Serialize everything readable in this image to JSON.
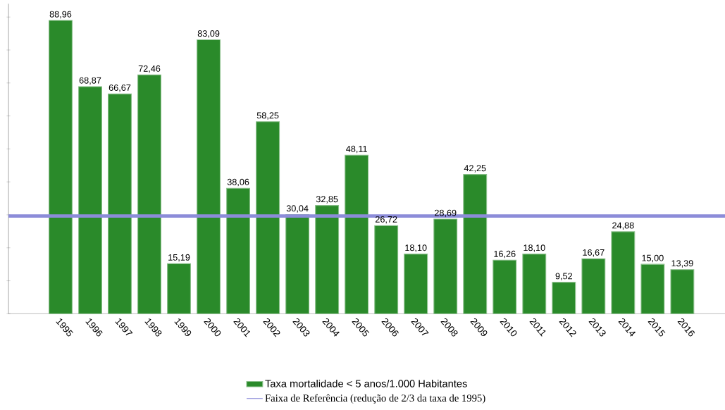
{
  "chart_data": {
    "type": "bar",
    "categories": [
      "1995",
      "1996",
      "1997",
      "1998",
      "1999",
      "2000",
      "2001",
      "2002",
      "2003",
      "2004",
      "2005",
      "2006",
      "2007",
      "2008",
      "2009",
      "2010",
      "2011",
      "2012",
      "2013",
      "2014",
      "2015",
      "2016"
    ],
    "series": [
      {
        "name": "Taxa mortalidade < 5 anos/1.000 Habitantes",
        "color": "#2a8a2a",
        "values": [
          88.96,
          68.87,
          66.67,
          72.46,
          15.19,
          83.09,
          38.06,
          58.25,
          30.04,
          32.85,
          48.11,
          26.72,
          18.1,
          28.69,
          42.25,
          16.26,
          18.1,
          9.52,
          16.67,
          24.88,
          15.0,
          13.39
        ],
        "value_labels": [
          "88,96",
          "68,87",
          "66,67",
          "72,46",
          "15,19",
          "83,09",
          "38,06",
          "58,25",
          "30,04",
          "32,85",
          "48,11",
          "26,72",
          "18,10",
          "28,69",
          "42,25",
          "16,26",
          "18,10",
          "9,52",
          "16,67",
          "24,88",
          "15,00",
          "13,39"
        ]
      }
    ],
    "tick_labels": "x",
    "ref_lines": [
      {
        "axis": "y",
        "value": 29.65,
        "label": "Faixa de Referência (redução de 2/3 da taxa de 1995)",
        "color": "#8c8cd9"
      }
    ],
    "legend": "bottom"
  }
}
